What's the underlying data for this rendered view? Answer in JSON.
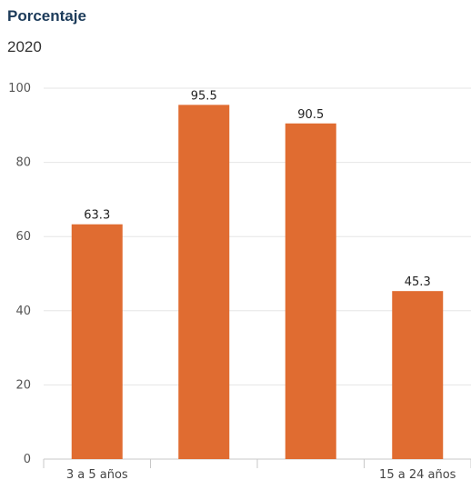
{
  "chart_data": {
    "type": "bar",
    "title": "Porcentaje",
    "subtitle": "2020",
    "categories": [
      "3 a 5 años",
      "",
      "",
      "15 a 24 años"
    ],
    "values": [
      63.3,
      95.5,
      90.5,
      45.3
    ],
    "data_labels": [
      "63.3",
      "95.5",
      "90.5",
      "45.3"
    ],
    "ylim": [
      0,
      100
    ],
    "yticks": [
      0,
      20,
      40,
      60,
      80,
      100
    ],
    "grid": true,
    "legend": "none",
    "bar_color": "#e06c31"
  }
}
